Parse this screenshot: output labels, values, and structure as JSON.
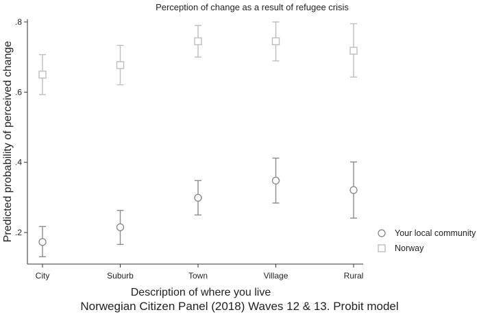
{
  "chart_data": {
    "type": "scatter",
    "title": "Perception of change as a result of refugee crisis",
    "xlabel": "Description of where you live",
    "ylabel": "Predicted probability of perceived change",
    "categories": [
      "City",
      "Suburb",
      "Town",
      "Village",
      "Rural"
    ],
    "ylim": [
      0.15,
      0.8
    ],
    "yticks": [
      0.2,
      0.4,
      0.6,
      0.8
    ],
    "ytick_labels": [
      ".2",
      ".4",
      ".6",
      ".8"
    ],
    "grid": false,
    "legend_position": "right",
    "series": [
      {
        "name": "Your local community",
        "marker": "circle",
        "color": "#8c8c8c",
        "values": [
          0.173,
          0.215,
          0.299,
          0.348,
          0.321
        ],
        "ci_low": [
          0.131,
          0.166,
          0.25,
          0.284,
          0.241
        ],
        "ci_high": [
          0.217,
          0.263,
          0.348,
          0.412,
          0.401
        ]
      },
      {
        "name": "Norway",
        "marker": "square",
        "color": "#bdbdbd",
        "values": [
          0.65,
          0.677,
          0.745,
          0.745,
          0.718
        ],
        "ci_low": [
          0.593,
          0.621,
          0.7,
          0.689,
          0.643
        ],
        "ci_high": [
          0.707,
          0.733,
          0.79,
          0.8,
          0.795
        ]
      }
    ]
  },
  "caption": "Norwegian Citizen Panel (2018) Waves 12 & 13. Probit model"
}
